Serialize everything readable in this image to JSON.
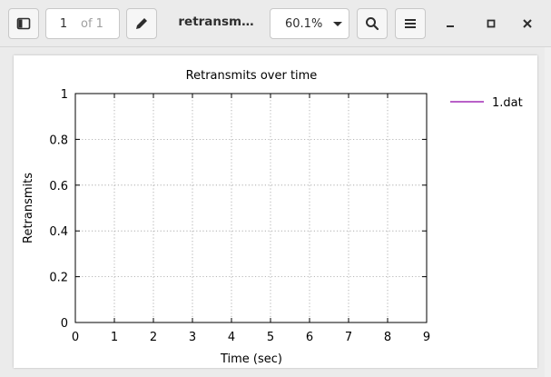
{
  "toolbar": {
    "page_current": "1",
    "page_of": "of 1",
    "doc_title": "retransm…",
    "zoom_value": "60.1%"
  },
  "chart_data": {
    "type": "line",
    "title": "Retransmits over time",
    "xlabel": "Time (sec)",
    "ylabel": "Retransmits",
    "xlim": [
      0,
      9
    ],
    "ylim": [
      0,
      1
    ],
    "x_ticks": [
      "0",
      "1",
      "2",
      "3",
      "4",
      "5",
      "6",
      "7",
      "8",
      "9"
    ],
    "y_ticks": [
      "0",
      "0.2",
      "0.4",
      "0.6",
      "0.8",
      "1"
    ],
    "grid": true,
    "legend_position": "top-right",
    "series": [
      {
        "name": "1.dat",
        "color": "#8f00a8",
        "x": [],
        "y": []
      }
    ]
  }
}
